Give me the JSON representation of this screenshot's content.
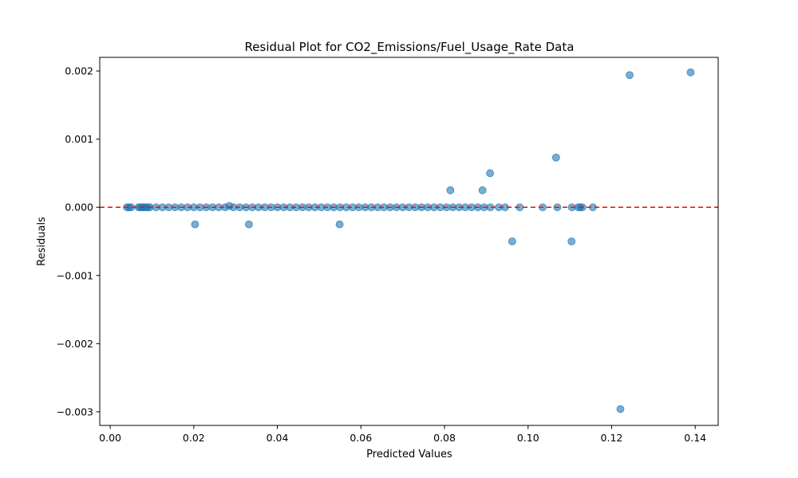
{
  "chart_data": {
    "type": "scatter",
    "title": "Residual Plot for CO2_Emissions/Fuel_Usage_Rate Data",
    "xlabel": "Predicted Values",
    "ylabel": "Residuals",
    "xlim": [
      -0.0025,
      0.1455
    ],
    "ylim": [
      -0.0032,
      0.0022
    ],
    "xticks": [
      {
        "value": 0.0,
        "label": "0.00"
      },
      {
        "value": 0.02,
        "label": "0.02"
      },
      {
        "value": 0.04,
        "label": "0.04"
      },
      {
        "value": 0.06,
        "label": "0.06"
      },
      {
        "value": 0.08,
        "label": "0.08"
      },
      {
        "value": 0.1,
        "label": "0.10"
      },
      {
        "value": 0.12,
        "label": "0.12"
      },
      {
        "value": 0.14,
        "label": "0.14"
      }
    ],
    "yticks": [
      {
        "value": 0.002,
        "label": "0.002"
      },
      {
        "value": 0.001,
        "label": "0.001"
      },
      {
        "value": 0.0,
        "label": "0.000"
      },
      {
        "value": -0.001,
        "label": "−0.001"
      },
      {
        "value": -0.002,
        "label": "−0.002"
      },
      {
        "value": -0.003,
        "label": "−0.003"
      }
    ],
    "reference_line": {
      "y": 0.0,
      "color": "#e31a1c",
      "style": "dashed"
    },
    "grid": false,
    "marker_color": "#1f77b4",
    "marker_alpha": 0.6,
    "series": [
      {
        "points": [
          {
            "x": 0.004,
            "y": 0.0
          },
          {
            "x": 0.0045,
            "y": 0.0
          },
          {
            "x": 0.005,
            "y": 0.0
          },
          {
            "x": 0.0068,
            "y": 0.0
          },
          {
            "x": 0.0072,
            "y": 0.0
          },
          {
            "x": 0.0076,
            "y": 0.0
          },
          {
            "x": 0.008,
            "y": 0.0
          },
          {
            "x": 0.0085,
            "y": 0.0
          },
          {
            "x": 0.009,
            "y": 0.0
          },
          {
            "x": 0.0095,
            "y": 0.0
          },
          {
            "x": 0.011,
            "y": 0.0
          },
          {
            "x": 0.0125,
            "y": 0.0
          },
          {
            "x": 0.014,
            "y": 0.0
          },
          {
            "x": 0.0155,
            "y": 0.0
          },
          {
            "x": 0.017,
            "y": 0.0
          },
          {
            "x": 0.0185,
            "y": 0.0
          },
          {
            "x": 0.02,
            "y": 0.0
          },
          {
            "x": 0.0215,
            "y": 0.0
          },
          {
            "x": 0.023,
            "y": 0.0
          },
          {
            "x": 0.0245,
            "y": 0.0
          },
          {
            "x": 0.026,
            "y": 0.0
          },
          {
            "x": 0.0275,
            "y": 0.0
          },
          {
            "x": 0.0285,
            "y": 2e-05
          },
          {
            "x": 0.0295,
            "y": 0.0
          },
          {
            "x": 0.031,
            "y": 0.0
          },
          {
            "x": 0.0325,
            "y": 0.0
          },
          {
            "x": 0.034,
            "y": 0.0
          },
          {
            "x": 0.0355,
            "y": 0.0
          },
          {
            "x": 0.037,
            "y": 0.0
          },
          {
            "x": 0.0385,
            "y": 0.0
          },
          {
            "x": 0.04,
            "y": 0.0
          },
          {
            "x": 0.0415,
            "y": 0.0
          },
          {
            "x": 0.043,
            "y": 0.0
          },
          {
            "x": 0.0445,
            "y": 0.0
          },
          {
            "x": 0.046,
            "y": 0.0
          },
          {
            "x": 0.0475,
            "y": 0.0
          },
          {
            "x": 0.049,
            "y": 0.0
          },
          {
            "x": 0.0505,
            "y": 0.0
          },
          {
            "x": 0.052,
            "y": 0.0
          },
          {
            "x": 0.0535,
            "y": 0.0
          },
          {
            "x": 0.055,
            "y": 0.0
          },
          {
            "x": 0.0565,
            "y": 0.0
          },
          {
            "x": 0.058,
            "y": 0.0
          },
          {
            "x": 0.0595,
            "y": 0.0
          },
          {
            "x": 0.061,
            "y": 0.0
          },
          {
            "x": 0.0625,
            "y": 0.0
          },
          {
            "x": 0.064,
            "y": 0.0
          },
          {
            "x": 0.0655,
            "y": 0.0
          },
          {
            "x": 0.067,
            "y": 0.0
          },
          {
            "x": 0.0685,
            "y": 0.0
          },
          {
            "x": 0.07,
            "y": 0.0
          },
          {
            "x": 0.0715,
            "y": 0.0
          },
          {
            "x": 0.073,
            "y": 0.0
          },
          {
            "x": 0.0745,
            "y": 0.0
          },
          {
            "x": 0.076,
            "y": 0.0
          },
          {
            "x": 0.0775,
            "y": 0.0
          },
          {
            "x": 0.079,
            "y": 0.0
          },
          {
            "x": 0.0805,
            "y": 0.0
          },
          {
            "x": 0.082,
            "y": 0.0
          },
          {
            "x": 0.0835,
            "y": 0.0
          },
          {
            "x": 0.085,
            "y": 0.0
          },
          {
            "x": 0.0865,
            "y": 0.0
          },
          {
            "x": 0.088,
            "y": 0.0
          },
          {
            "x": 0.0895,
            "y": 0.0
          },
          {
            "x": 0.091,
            "y": 0.0
          },
          {
            "x": 0.093,
            "y": 0.0
          },
          {
            "x": 0.0945,
            "y": 0.0
          },
          {
            "x": 0.098,
            "y": 0.0
          },
          {
            "x": 0.1035,
            "y": 0.0
          },
          {
            "x": 0.107,
            "y": 0.0
          },
          {
            "x": 0.1105,
            "y": 0.0
          },
          {
            "x": 0.112,
            "y": 0.0
          },
          {
            "x": 0.1125,
            "y": 0.0
          },
          {
            "x": 0.113,
            "y": 0.0
          },
          {
            "x": 0.1155,
            "y": 0.0
          },
          {
            "x": 0.0203,
            "y": -0.00025
          },
          {
            "x": 0.0332,
            "y": -0.00025
          },
          {
            "x": 0.0549,
            "y": -0.00025
          },
          {
            "x": 0.0814,
            "y": 0.00025
          },
          {
            "x": 0.0891,
            "y": 0.00025
          },
          {
            "x": 0.0909,
            "y": 0.0005
          },
          {
            "x": 0.0962,
            "y": -0.0005
          },
          {
            "x": 0.1104,
            "y": -0.0005
          },
          {
            "x": 0.1067,
            "y": 0.00073
          },
          {
            "x": 0.1243,
            "y": 0.00194
          },
          {
            "x": 0.1389,
            "y": 0.00198
          },
          {
            "x": 0.1221,
            "y": -0.00296
          }
        ]
      }
    ]
  }
}
